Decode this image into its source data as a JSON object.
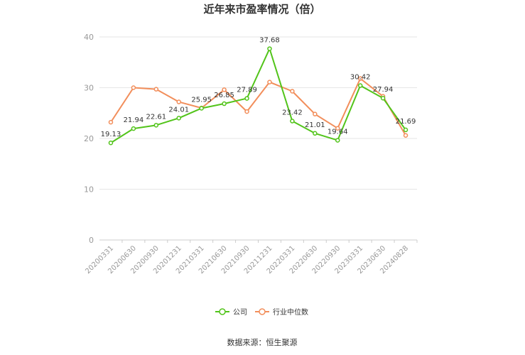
{
  "chart_data": {
    "type": "line",
    "title": "近年来市盈率情况（倍）",
    "categories": [
      "20200331",
      "20200630",
      "20200930",
      "20201231",
      "20210331",
      "20210630",
      "20210930",
      "20211231",
      "20220331",
      "20220630",
      "20220930",
      "20230331",
      "20230630",
      "20240828"
    ],
    "ylim": [
      0,
      40
    ],
    "yticks": [
      0,
      10,
      20,
      30,
      40
    ],
    "grid": true,
    "legend_position": "bottom",
    "series": [
      {
        "name": "公司",
        "color": "#52c41a",
        "values": [
          19.13,
          21.94,
          22.61,
          24.01,
          25.95,
          26.85,
          27.89,
          37.68,
          23.42,
          21.01,
          19.64,
          30.42,
          27.94,
          21.69
        ],
        "labels": [
          "19.13",
          "21.94",
          "22.61",
          "24.01",
          "25.95",
          "26.85",
          "27.89",
          "37.68",
          "23.42",
          "21.01",
          "19.64",
          "30.42",
          "27.94",
          "21.69"
        ]
      },
      {
        "name": "行业中位数",
        "color": "#f28e5b",
        "values": [
          23.2,
          30.0,
          29.7,
          27.2,
          26.0,
          29.6,
          25.3,
          31.1,
          29.3,
          24.8,
          22.0,
          31.8,
          28.3,
          20.6
        ]
      }
    ],
    "source": "数据来源：恒生聚源"
  }
}
